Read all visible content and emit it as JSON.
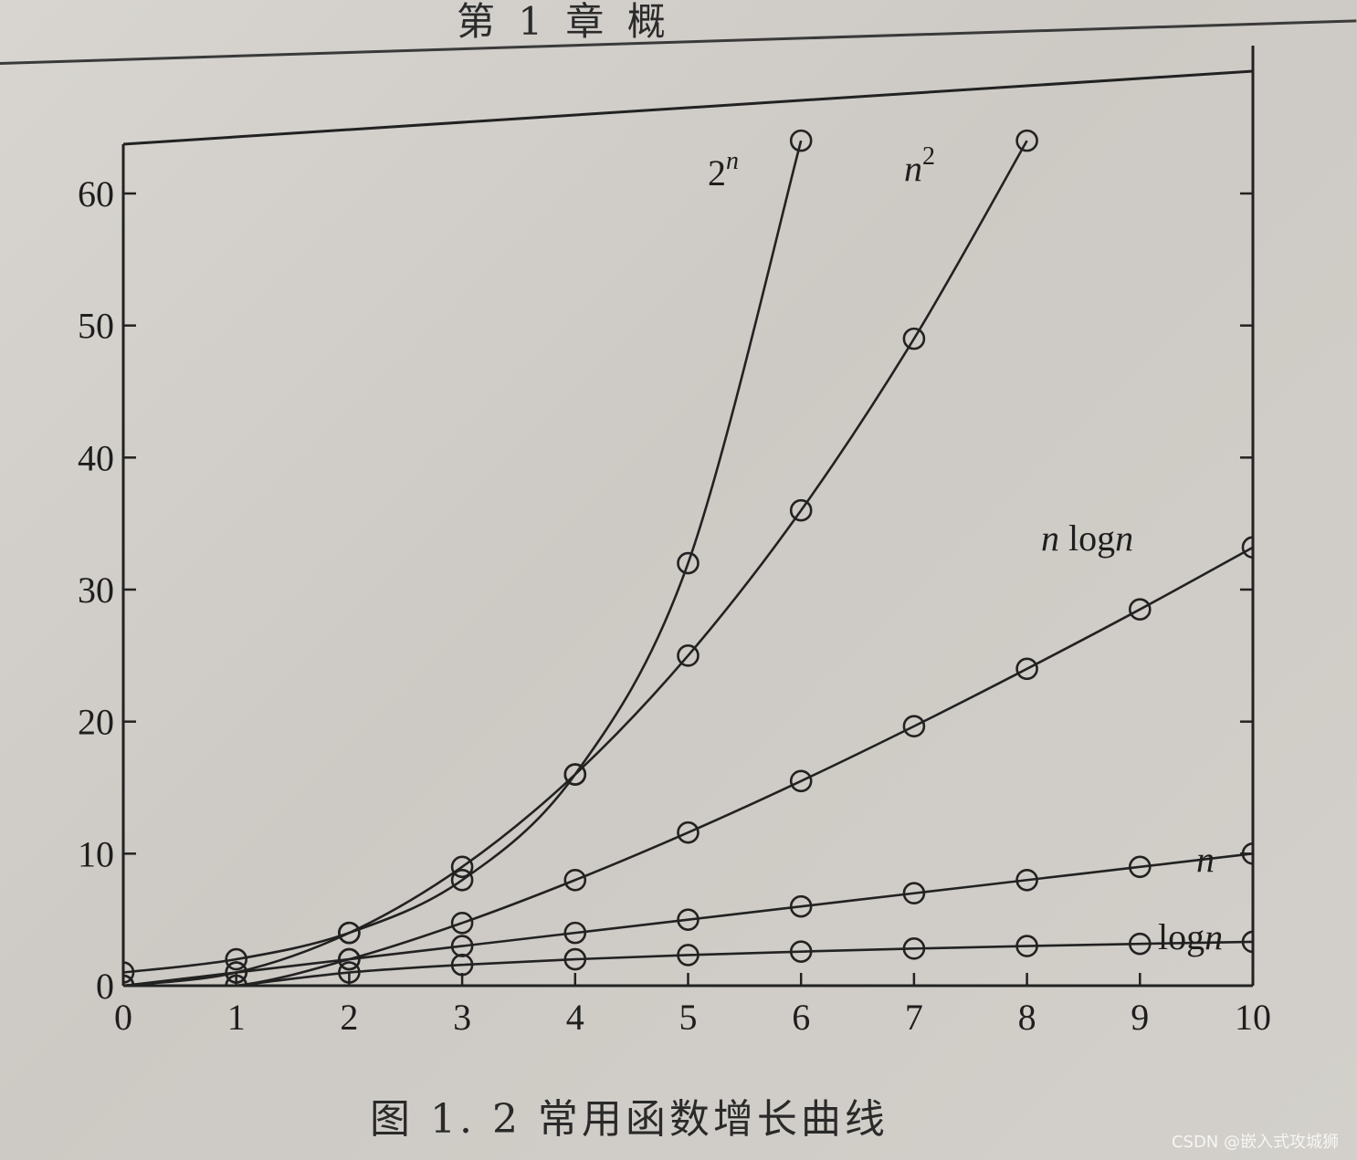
{
  "header": {
    "text": "第 1 章   概"
  },
  "caption": {
    "text": "图 1. 2    常用函数增长曲线"
  },
  "watermark": {
    "text": "CSDN @嵌入式攻城狮"
  },
  "chart_data": {
    "type": "line",
    "title": "",
    "xlabel": "",
    "ylabel": "",
    "xlim": [
      0,
      10
    ],
    "ylim": [
      0,
      60
    ],
    "x_ticks": [
      "0",
      "1",
      "2",
      "3",
      "4",
      "5",
      "6",
      "7",
      "8",
      "9",
      "10"
    ],
    "y_ticks": [
      "0",
      "10",
      "20",
      "30",
      "40",
      "50",
      "60"
    ],
    "grid": false,
    "x": [
      0,
      1,
      2,
      3,
      4,
      5,
      6,
      7,
      8,
      9,
      10
    ],
    "series": [
      {
        "name": "2^n",
        "label_base": "2",
        "label_sup": "n",
        "x": [
          0,
          1,
          2,
          3,
          4,
          5,
          6
        ],
        "values": [
          1,
          2,
          4,
          8,
          16,
          32,
          64
        ]
      },
      {
        "name": "n^2",
        "label_base": "n",
        "label_sup": "2",
        "x": [
          0,
          1,
          2,
          3,
          4,
          5,
          6,
          7,
          8
        ],
        "values": [
          0,
          1,
          4,
          9,
          16,
          25,
          36,
          49,
          64
        ]
      },
      {
        "name": "n logn",
        "label_parts": [
          "n",
          " log",
          "n"
        ],
        "x": [
          0,
          1,
          2,
          3,
          4,
          5,
          6,
          7,
          8,
          9,
          10
        ],
        "values": [
          0,
          0,
          2,
          4.75,
          8,
          11.6,
          15.5,
          19.65,
          24,
          28.5,
          33.2
        ]
      },
      {
        "name": "n",
        "label_parts": [
          "n"
        ],
        "x": [
          0,
          1,
          2,
          3,
          4,
          5,
          6,
          7,
          8,
          9,
          10
        ],
        "values": [
          0,
          1,
          2,
          3,
          4,
          5,
          6,
          7,
          8,
          9,
          10
        ]
      },
      {
        "name": "logn",
        "label_parts": [
          "log",
          "n"
        ],
        "x": [
          1,
          2,
          3,
          4,
          5,
          6,
          7,
          8,
          9,
          10
        ],
        "values": [
          0,
          1,
          1.58,
          2,
          2.32,
          2.58,
          2.81,
          3,
          3.17,
          3.32
        ]
      }
    ]
  }
}
